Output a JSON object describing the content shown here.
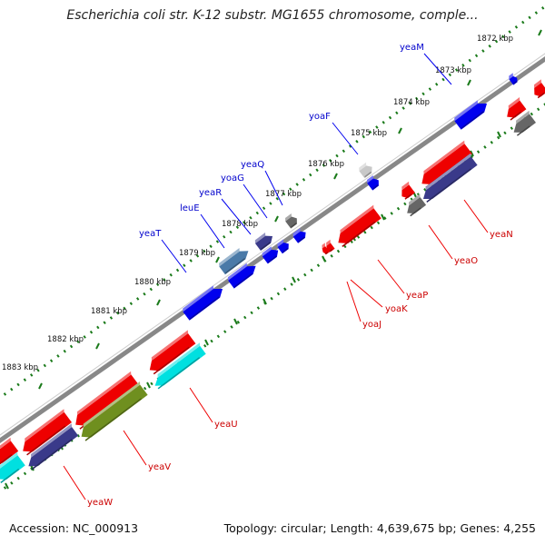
{
  "title": "Escherichia coli str. K-12 substr. MG1655 chromosome, comple...",
  "footer": {
    "accession": "Accession: NC_000913",
    "topology": "Topology: circular; Length: 4,639,675 bp; Genes: 4,255"
  },
  "ticks": [
    "1872 kbp",
    "1873 kbp",
    "1874 kbp",
    "1875 kbp",
    "1876 kbp",
    "1877 kbp",
    "1878 kbp",
    "1879 kbp",
    "1880 kbp",
    "1881 kbp",
    "1882 kbp",
    "1883 kbp"
  ],
  "genes_forward": [
    "yeaM",
    "yoaF",
    "yeaQ",
    "yoaG",
    "yeaR",
    "leuE",
    "yeaT"
  ],
  "genes_reverse": [
    "yeaN",
    "yeaO",
    "yeaP",
    "yoaK",
    "yoaJ",
    "yeaU",
    "yeaV",
    "yeaW"
  ],
  "colors": {
    "forward": "#0000ee",
    "reverse": "#ee0000",
    "backbone": "#888888",
    "tick": "#1a7a1a",
    "cog_purple": "#3a3a8a",
    "cog_gray": "#666666",
    "cog_cyan": "#00e0e0",
    "cog_olive": "#6f8f1f",
    "cog_steel": "#4a7aa8"
  }
}
